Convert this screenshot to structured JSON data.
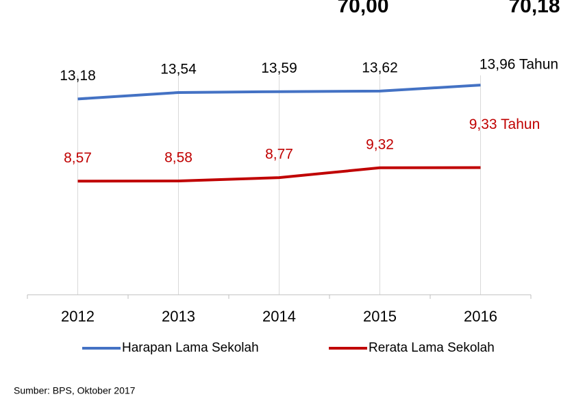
{
  "chart_data": {
    "type": "line",
    "annotations": [
      "70,00",
      "70,18"
    ],
    "categories": [
      "2012",
      "2013",
      "2014",
      "2015",
      "2016"
    ],
    "series": [
      {
        "name": "Harapan Lama Sekolah",
        "color": "#4472c4",
        "values": [
          13.18,
          13.54,
          13.59,
          13.62,
          13.96
        ],
        "value_labels": [
          "13,18",
          "13,54",
          "13,59",
          "13,62",
          "13,96 Tahun"
        ]
      },
      {
        "name": "Rerata Lama Sekolah",
        "color": "#c00000",
        "values": [
          8.57,
          8.58,
          8.77,
          9.32,
          9.33
        ],
        "value_labels": [
          "8,57",
          "8,58",
          "8,77",
          "9,32",
          "9,33 Tahun"
        ]
      }
    ],
    "ylim": [
      2.2,
      16
    ],
    "grid": true,
    "legend": "bottom",
    "source": "Sumber: BPS, Oktober 2017"
  }
}
